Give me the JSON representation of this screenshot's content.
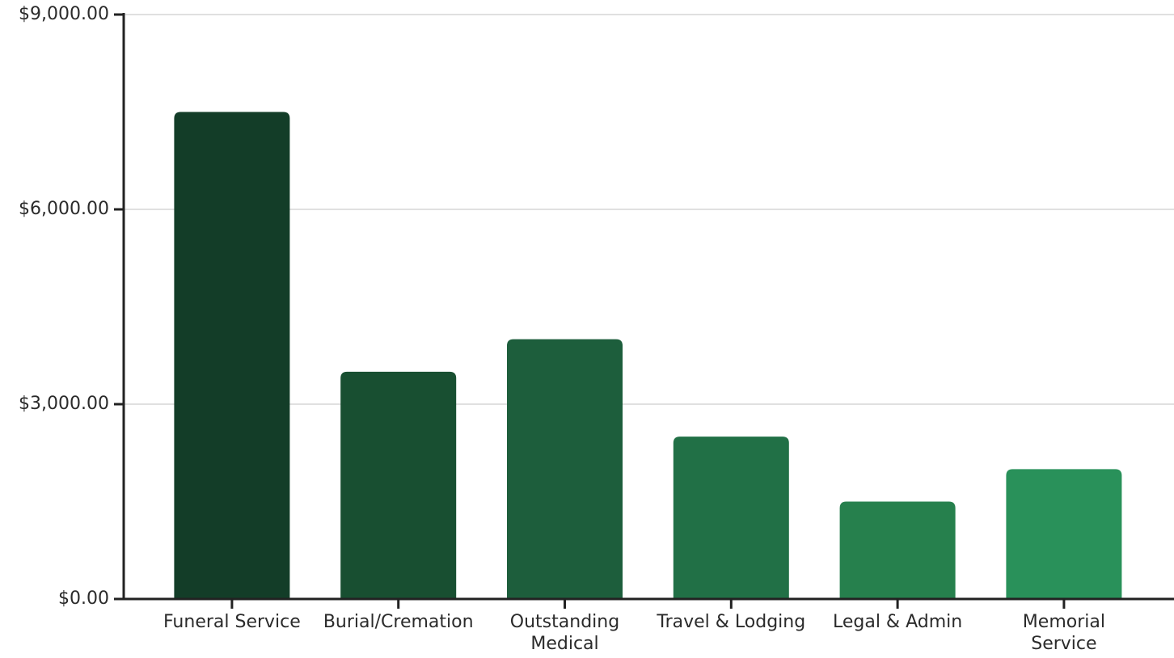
{
  "chart_data": {
    "type": "bar",
    "categories": [
      "Funeral Service",
      "Burial/Cremation",
      "Outstanding\nMedical",
      "Travel & Lodging",
      "Legal & Admin",
      "Memorial\nService"
    ],
    "values": [
      7500,
      3500,
      4000,
      2500,
      1500,
      2000
    ],
    "colors": [
      "#133d28",
      "#184f31",
      "#1d5e3c",
      "#217046",
      "#26804d",
      "#29915a"
    ],
    "ylim": [
      0,
      9000
    ],
    "yticks": [
      {
        "value": 0,
        "label": "$0.00"
      },
      {
        "value": 3000,
        "label": "$3,000.00"
      },
      {
        "value": 6000,
        "label": "$6,000.00"
      },
      {
        "value": 9000,
        "label": "$9,000.00"
      }
    ],
    "grid": true
  }
}
